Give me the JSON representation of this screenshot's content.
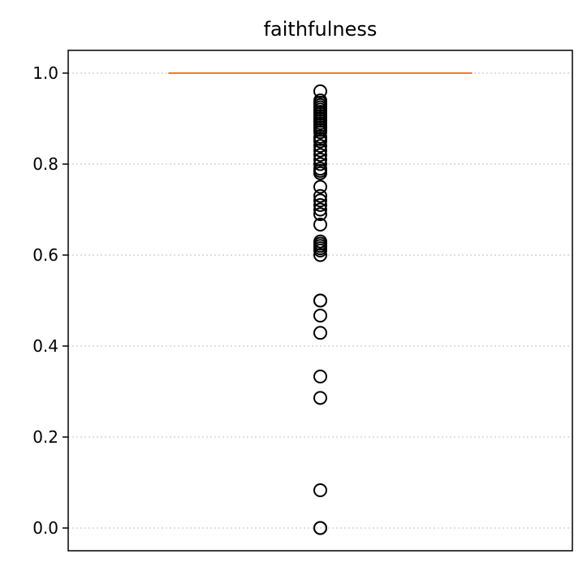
{
  "chart_data": {
    "type": "box",
    "title": "faithfulness",
    "xlabel": "",
    "ylabel": "",
    "ylim": [
      -0.05,
      1.05
    ],
    "yticks": [
      0.0,
      0.2,
      0.4,
      0.6,
      0.8,
      1.0
    ],
    "ytick_labels": [
      "0.0",
      "0.2",
      "0.4",
      "0.6",
      "0.8",
      "1.0"
    ],
    "grid": "horizontal dotted",
    "box": {
      "q1": 1.0,
      "median": 1.0,
      "q3": 1.0,
      "whisker_low": 1.0,
      "whisker_high": 1.0
    },
    "outliers": [
      0.96,
      0.94,
      0.935,
      0.93,
      0.925,
      0.92,
      0.915,
      0.91,
      0.905,
      0.9,
      0.895,
      0.89,
      0.885,
      0.88,
      0.875,
      0.87,
      0.86,
      0.855,
      0.85,
      0.84,
      0.83,
      0.82,
      0.81,
      0.8,
      0.79,
      0.785,
      0.78,
      0.75,
      0.73,
      0.72,
      0.71,
      0.7,
      0.69,
      0.667,
      0.63,
      0.625,
      0.62,
      0.615,
      0.61,
      0.6,
      0.5,
      0.5,
      0.467,
      0.429,
      0.333,
      0.286,
      0.083,
      0.0,
      0.0
    ],
    "colors": {
      "median": "#e8832a",
      "grid": "#cccccc",
      "marker_edge": "#000000"
    }
  }
}
